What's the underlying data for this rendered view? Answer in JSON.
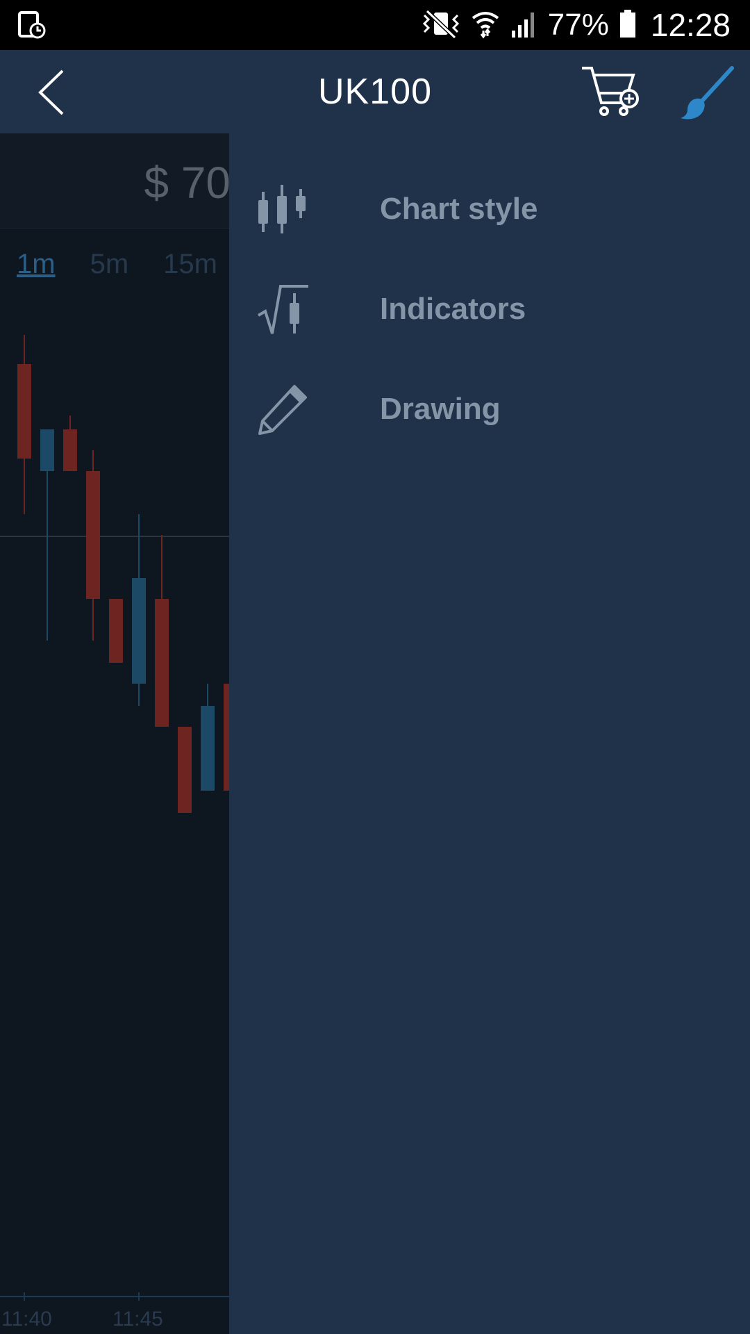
{
  "status_bar": {
    "battery_percent": "77%",
    "time": "12:28",
    "icons": [
      "screenshot-clock-icon",
      "vibrate-mute-icon",
      "wifi-icon",
      "signal-icon",
      "battery-icon"
    ]
  },
  "header": {
    "title": "UK100",
    "icons": [
      "back-chevron-icon",
      "cart-add-icon",
      "brush-icon"
    ]
  },
  "chart_panel": {
    "price_partial": "$ 70",
    "timeframes": [
      "1m",
      "5m",
      "15m"
    ],
    "active_timeframe": "1m",
    "time_axis": [
      "11:40",
      "11:45"
    ]
  },
  "drawer": {
    "items": [
      {
        "label": "Chart style",
        "icon": "candlestick-icon"
      },
      {
        "label": "Indicators",
        "icon": "indicator-icon"
      },
      {
        "label": "Drawing",
        "icon": "pencil-icon"
      }
    ]
  },
  "colors": {
    "header_bg": "#1f3249",
    "drawer_bg": "#1f3249",
    "accent": "#2e87c8",
    "menu_text": "#8595a8",
    "candle_down": "#6e2420",
    "candle_up": "#1c4a66"
  }
}
